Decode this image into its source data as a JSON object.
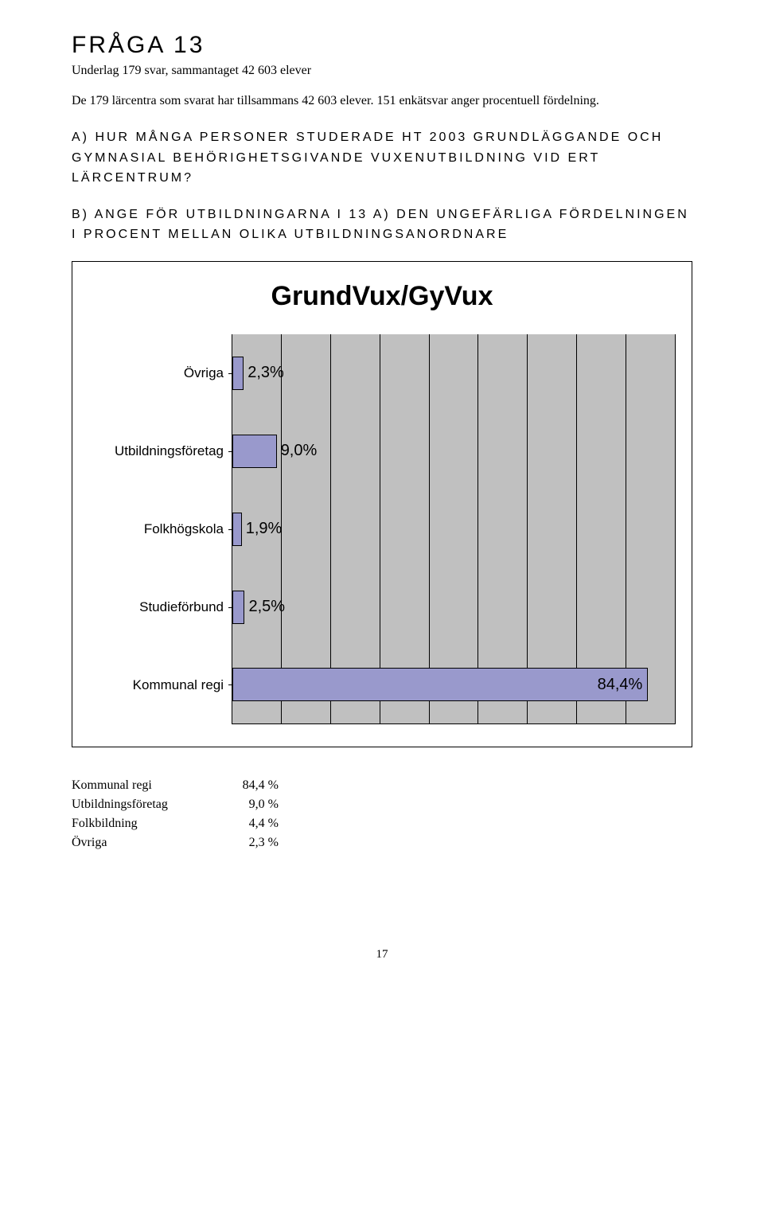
{
  "header": {
    "title": "FRÅGA 13",
    "subtitle": "Underlag 179 svar, sammantaget 42 603 elever",
    "intro": "De 179 lärcentra som svarat har tillsammans 42 603 elever. 151 enkätsvar anger procentuell fördelning."
  },
  "questions": {
    "a": "A) HUR MÅNGA PERSONER STUDERADE HT 2003 GRUNDLÄGGANDE OCH GYMNASIAL BEHÖRIGHETSGIVANDE VUXENUTBILDNING VID ERT LÄRCENTRUM?",
    "b": "B) ANGE FÖR UTBILDNINGARNA I 13 A) DEN UNGEFÄRLIGA FÖRDELNINGEN I PROCENT MELLAN OLIKA UTBILDNINGSANORDNARE"
  },
  "chart": {
    "type": "bar",
    "title": "GrundVux/GyVux",
    "background_color": "#c0c0c0",
    "bar_fill": "#9999cc",
    "bar_border": "#000000",
    "grid_color": "#000000",
    "axis_max": 90,
    "grid_divisions": 9,
    "title_fontsize": 34,
    "label_fontsize": 17,
    "value_fontsize": 20,
    "categories": [
      {
        "label": "Övriga",
        "value": 2.3,
        "value_label": "2,3%"
      },
      {
        "label": "Utbildningsföretag",
        "value": 9.0,
        "value_label": "9,0%"
      },
      {
        "label": "Folkhögskola",
        "value": 1.9,
        "value_label": "1,9%"
      },
      {
        "label": "Studieförbund",
        "value": 2.5,
        "value_label": "2,5%"
      },
      {
        "label": "Kommunal regi",
        "value": 84.4,
        "value_label": "84,4%"
      }
    ]
  },
  "summary": [
    {
      "label": "Kommunal regi",
      "value": "84,4 %"
    },
    {
      "label": "Utbildningsföretag",
      "value": "9,0 %"
    },
    {
      "label": "Folkbildning",
      "value": "4,4 %"
    },
    {
      "label": "Övriga",
      "value": "2,3 %"
    }
  ],
  "page_number": "17"
}
